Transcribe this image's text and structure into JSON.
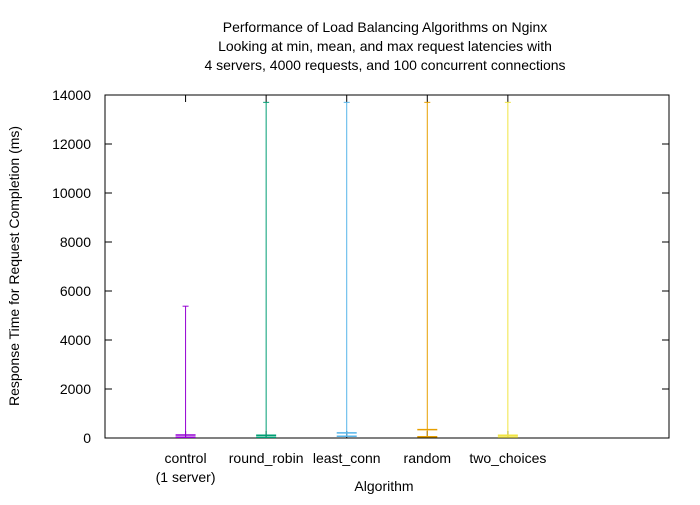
{
  "chart_data": {
    "type": "error-bar",
    "title_lines": [
      "Performance of Load Balancing Algorithms on Nginx",
      "Looking at min, mean, and max request latencies with",
      "4 servers, 4000 requests, and 100 concurrent connections"
    ],
    "xlabel": "Algorithm",
    "ylabel": "Response Time for Request Completion (ms)",
    "ylim": [
      0,
      14000
    ],
    "yticks": [
      0,
      2000,
      4000,
      6000,
      8000,
      10000,
      12000,
      14000
    ],
    "grid": false,
    "legend": "none",
    "categories": [
      {
        "label_lines": [
          "control",
          "(1 server)"
        ],
        "min": 30,
        "mean": 120,
        "max": 5380,
        "color": "#9400d3"
      },
      {
        "label_lines": [
          "round_robin"
        ],
        "min": 30,
        "mean": 110,
        "max": 13700,
        "color": "#009e73"
      },
      {
        "label_lines": [
          "least_conn"
        ],
        "min": 70,
        "mean": 210,
        "max": 13700,
        "color": "#56b4e9"
      },
      {
        "label_lines": [
          "random"
        ],
        "min": 50,
        "mean": 340,
        "max": 13700,
        "color": "#e69f00"
      },
      {
        "label_lines": [
          "two_choices"
        ],
        "min": 40,
        "mean": 110,
        "max": 13700,
        "color": "#f0e442"
      }
    ]
  }
}
